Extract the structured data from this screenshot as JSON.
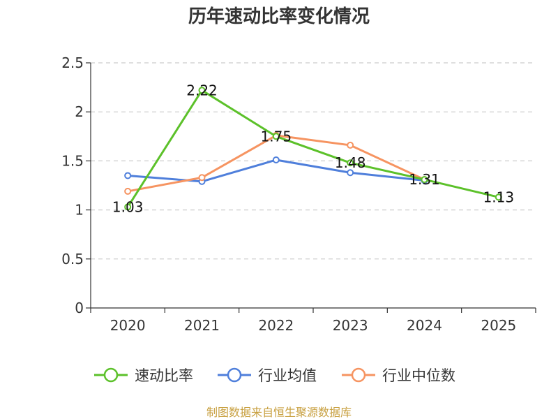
{
  "chart_data": {
    "type": "line",
    "title": "历年速动比率变化情况",
    "categories": [
      "2020",
      "2021",
      "2022",
      "2023",
      "2024",
      "2025"
    ],
    "ylim": [
      0,
      2.5
    ],
    "yticks": [
      "0",
      "0.5",
      "1",
      "1.5",
      "2",
      "2.5"
    ],
    "grid": true,
    "legend_position": "bottom",
    "series": [
      {
        "name": "速动比率",
        "color": "#5cc12a",
        "values": [
          1.03,
          2.22,
          1.75,
          1.48,
          1.31,
          1.13
        ],
        "labels": [
          "1.03",
          "2.22",
          "1.75",
          "1.48",
          "1.31",
          "1.13"
        ]
      },
      {
        "name": "行业均值",
        "color": "#4f7fdb",
        "values": [
          1.35,
          1.29,
          1.51,
          1.38,
          1.3,
          null
        ]
      },
      {
        "name": "行业中位数",
        "color": "#f69461",
        "values": [
          1.19,
          1.33,
          1.76,
          1.66,
          1.31,
          null
        ]
      }
    ],
    "source": "制图数据来自恒生聚源数据库"
  }
}
